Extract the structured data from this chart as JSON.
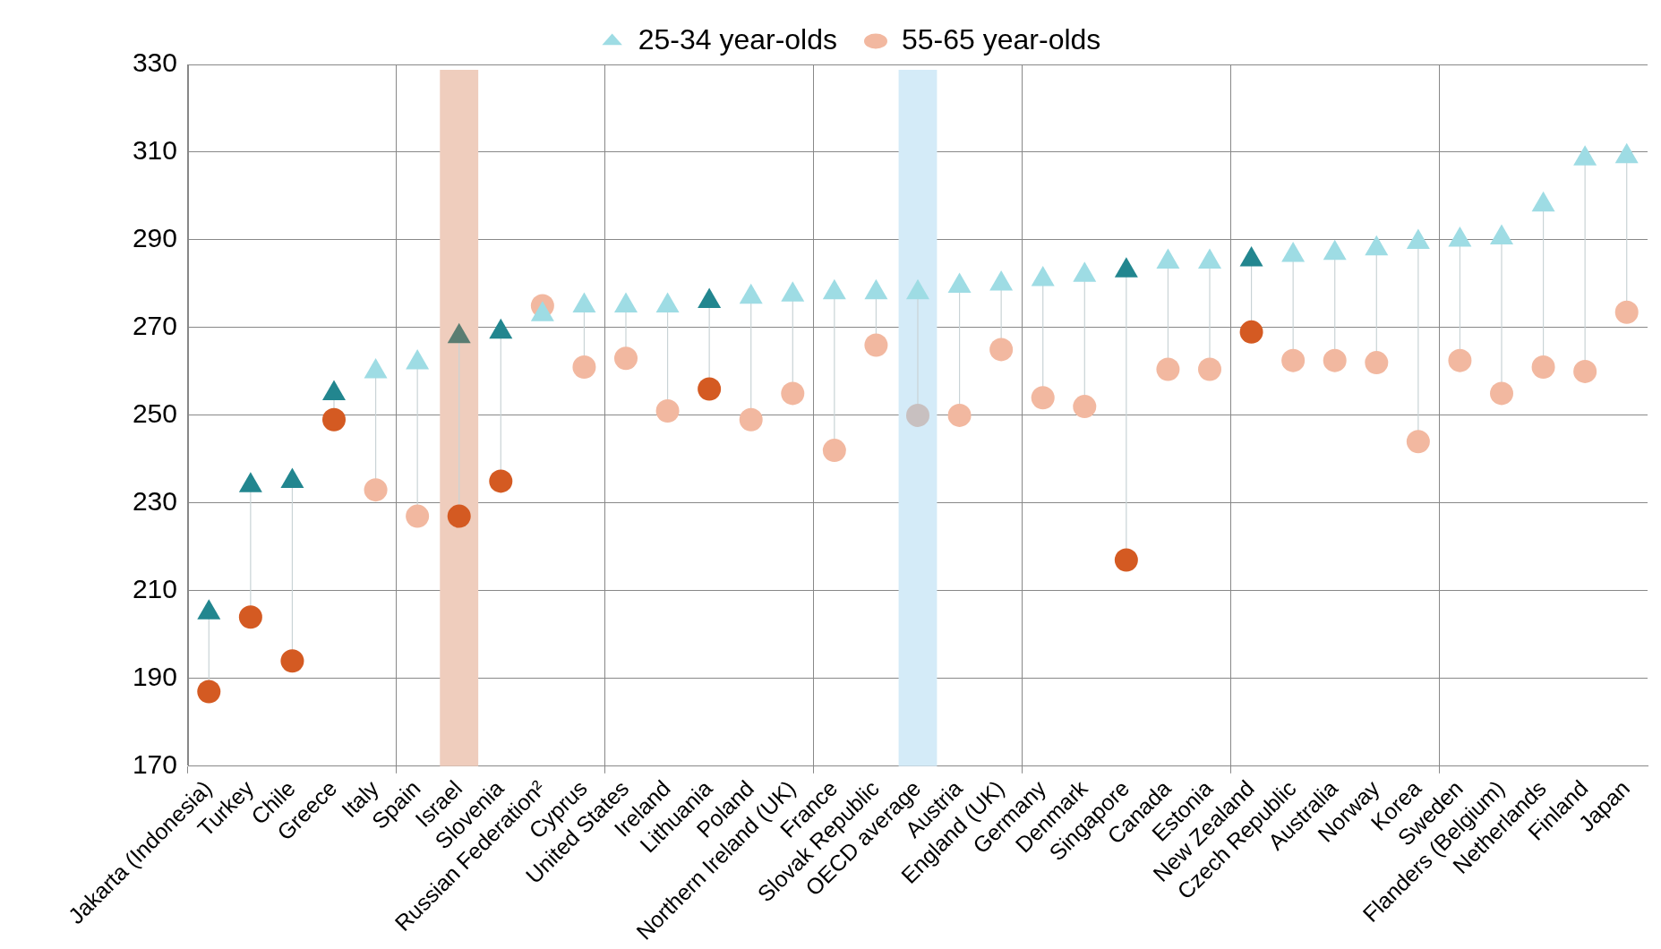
{
  "chart_data": {
    "type": "scatter",
    "categories": [
      "Jakarta (Indonesia)",
      "Turkey",
      "Chile",
      "Greece",
      "Italy",
      "Spain",
      "Israel",
      "Slovenia",
      "Russian Federation²",
      "Cyprus",
      "United States",
      "Ireland",
      "Lithuania",
      "Poland",
      "Northern Ireland (UK)",
      "France",
      "Slovak Republic",
      "OECD average",
      "Austria",
      "England (UK)",
      "Germany",
      "Denmark",
      "Singapore",
      "Canada",
      "Estonia",
      "New Zealand",
      "Czech Republic",
      "Australia",
      "Norway",
      "Korea",
      "Sweden",
      "Flanders (Belgium)",
      "Netherlands",
      "Finland",
      "Japan"
    ],
    "series": [
      {
        "name": "25-34 year-olds",
        "marker": "triangle",
        "color": "#9edce4",
        "colors": [
          "#22868f",
          "#22868f",
          "#22868f",
          "#22868f",
          "#9edce4",
          "#9edce4",
          "#5a7d72",
          "#22868f",
          "#9edce4",
          "#9edce4",
          "#9edce4",
          "#9edce4",
          "#22868f",
          "#9edce4",
          "#9edce4",
          "#9edce4",
          "#9edce4",
          "#9edce4",
          "#9edce4",
          "#9edce4",
          "#9edce4",
          "#9edce4",
          "#22868f",
          "#9edce4",
          "#9edce4",
          "#22868f",
          "#9edce4",
          "#9edce4",
          "#9edce4",
          "#9edce4",
          "#9edce4",
          "#9edce4",
          "#9edce4",
          "#9edce4",
          "#9edce4"
        ],
        "values": [
          205,
          234,
          235,
          255,
          260,
          262,
          268,
          269,
          273,
          275,
          275,
          275,
          276,
          277,
          277.5,
          278,
          278,
          278,
          279.5,
          280,
          281,
          282,
          283,
          285,
          285,
          285.5,
          286.5,
          287,
          288,
          289.5,
          290,
          290.5,
          298,
          308.5,
          309
        ]
      },
      {
        "name": "55-65 year-olds",
        "marker": "circle",
        "color": "#f2b8a0",
        "colors": [
          "#d45a22",
          "#d45a22",
          "#d45a22",
          "#d45a22",
          "#f2b8a0",
          "#f2b8a0",
          "#d45a22",
          "#d45a22",
          "#f2b8a0",
          "#f2b8a0",
          "#f2b8a0",
          "#f2b8a0",
          "#d45a22",
          "#f2b8a0",
          "#f2b8a0",
          "#f2b8a0",
          "#f2b8a0",
          "#c8c0c0",
          "#f2b8a0",
          "#f2b8a0",
          "#f2b8a0",
          "#f2b8a0",
          "#d45a22",
          "#f2b8a0",
          "#f2b8a0",
          "#d45a22",
          "#f2b8a0",
          "#f2b8a0",
          "#f2b8a0",
          "#f2b8a0",
          "#f2b8a0",
          "#f2b8a0",
          "#f2b8a0",
          "#f2b8a0",
          "#f2b8a0"
        ],
        "values": [
          187,
          204,
          194,
          249,
          233,
          227,
          227,
          235,
          275,
          261,
          263,
          251,
          256,
          249,
          255,
          242,
          266,
          250,
          250,
          265,
          254,
          252,
          217,
          260.5,
          260.5,
          269,
          262.5,
          262.5,
          262,
          244,
          262.5,
          255,
          261,
          260,
          273.5
        ]
      }
    ],
    "bands": [
      {
        "axis": "x",
        "from": "Israel",
        "to": "Israel",
        "color": "#efcdbd"
      },
      {
        "axis": "x",
        "from": "OECD average",
        "to": "OECD average",
        "color": "#d4ebf8"
      }
    ],
    "ylim": [
      170,
      330
    ],
    "yticks": [
      170,
      190,
      210,
      230,
      250,
      270,
      290,
      310,
      330
    ],
    "grid": true,
    "legend": "top"
  }
}
